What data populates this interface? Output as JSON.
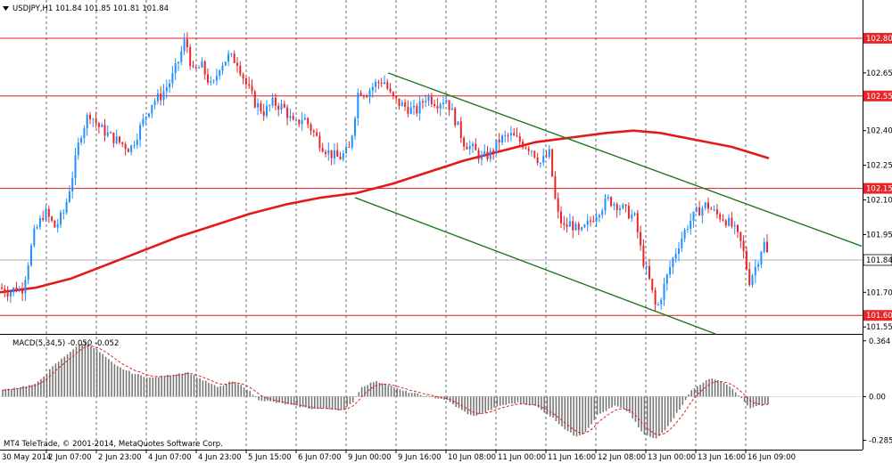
{
  "header": {
    "symbol_line": "USDJPY,H1  101.84 101.85 101.81 101.84",
    "symbol_menu_icon": "triangle-down-icon"
  },
  "footer": {
    "copyright": "MT4 TeleTrade, © 2001-2014, MetaQuotes Software Corp."
  },
  "colors": {
    "background": "#ffffff",
    "bull_candle": "#1e90ff",
    "bear_candle": "#e8262a",
    "moving_average": "#e21a1a",
    "channel": "#1f7a1f",
    "horizontal_level": "#e81818",
    "grid": "#444444",
    "macd_hist": "#777777",
    "macd_signal": "#e22222",
    "price_tag_bg": "#e8262a",
    "current_tag_bg": "#ffffff"
  },
  "chart_data": {
    "type": "candlestick",
    "instrument": "USDJPY",
    "timeframe": "H1",
    "ohlc_header": {
      "open": 101.84,
      "high": 101.85,
      "low": 101.81,
      "close": 101.84
    },
    "current_price": 101.84,
    "y_axis": {
      "ticks": [
        "102.65",
        "102.40",
        "102.25",
        "102.10",
        "101.95",
        "101.70",
        "101.55"
      ],
      "range": [
        101.52,
        102.9
      ]
    },
    "horizontal_levels": [
      {
        "price": 102.8,
        "label": "102.80"
      },
      {
        "price": 102.55,
        "label": "102.55"
      },
      {
        "price": 102.15,
        "label": "102.15"
      },
      {
        "price": 101.6,
        "label": "101.60"
      }
    ],
    "current_price_tag": "101.84",
    "x_axis": {
      "labels": [
        "30 May 2014",
        "2 Jun 07:00",
        "2 Jun 23:00",
        "4 Jun 07:00",
        "4 Jun 23:00",
        "5 Jun 15:00",
        "6 Jun 07:00",
        "9 Jun 00:00",
        "9 Jun 16:00",
        "10 Jun 08:00",
        "11 Jun 00:00",
        "11 Jun 16:00",
        "12 Jun 08:00",
        "13 Jun 00:00",
        "13 Jun 16:00",
        "16 Jun 09:00"
      ],
      "vertical_grid": true
    },
    "candle_path": [
      [
        0,
        101.72
      ],
      [
        10,
        101.7
      ],
      [
        18,
        101.72
      ],
      [
        24,
        101.7
      ],
      [
        30,
        101.8
      ],
      [
        38,
        101.95
      ],
      [
        50,
        102.05
      ],
      [
        62,
        101.98
      ],
      [
        72,
        102.05
      ],
      [
        82,
        102.22
      ],
      [
        90,
        102.38
      ],
      [
        100,
        102.48
      ],
      [
        110,
        102.42
      ],
      [
        122,
        102.38
      ],
      [
        134,
        102.35
      ],
      [
        146,
        102.32
      ],
      [
        158,
        102.42
      ],
      [
        170,
        102.52
      ],
      [
        180,
        102.55
      ],
      [
        192,
        102.62
      ],
      [
        200,
        102.7
      ],
      [
        208,
        102.8
      ],
      [
        216,
        102.65
      ],
      [
        226,
        102.68
      ],
      [
        238,
        102.58
      ],
      [
        246,
        102.68
      ],
      [
        256,
        102.72
      ],
      [
        266,
        102.7
      ],
      [
        276,
        102.6
      ],
      [
        286,
        102.52
      ],
      [
        296,
        102.48
      ],
      [
        306,
        102.52
      ],
      [
        318,
        102.5
      ],
      [
        330,
        102.42
      ],
      [
        340,
        102.46
      ],
      [
        350,
        102.4
      ],
      [
        360,
        102.34
      ],
      [
        370,
        102.3
      ],
      [
        380,
        102.28
      ],
      [
        392,
        102.32
      ],
      [
        402,
        102.58
      ],
      [
        410,
        102.56
      ],
      [
        420,
        102.6
      ],
      [
        430,
        102.62
      ],
      [
        438,
        102.55
      ],
      [
        446,
        102.52
      ],
      [
        456,
        102.5
      ],
      [
        466,
        102.48
      ],
      [
        478,
        102.55
      ],
      [
        490,
        102.52
      ],
      [
        500,
        102.54
      ],
      [
        510,
        102.45
      ],
      [
        520,
        102.35
      ],
      [
        530,
        102.32
      ],
      [
        540,
        102.28
      ],
      [
        550,
        102.3
      ],
      [
        560,
        102.36
      ],
      [
        572,
        102.38
      ],
      [
        584,
        102.35
      ],
      [
        596,
        102.32
      ],
      [
        606,
        102.26
      ],
      [
        616,
        102.3
      ],
      [
        624,
        102.05
      ],
      [
        632,
        101.98
      ],
      [
        640,
        102.0
      ],
      [
        650,
        101.95
      ],
      [
        660,
        102.0
      ],
      [
        672,
        102.06
      ],
      [
        682,
        102.1
      ],
      [
        692,
        102.08
      ],
      [
        702,
        102.05
      ],
      [
        712,
        102.02
      ],
      [
        720,
        101.85
      ],
      [
        728,
        101.75
      ],
      [
        736,
        101.62
      ],
      [
        744,
        101.72
      ],
      [
        752,
        101.82
      ],
      [
        762,
        101.92
      ],
      [
        772,
        102.0
      ],
      [
        782,
        102.05
      ],
      [
        792,
        102.08
      ],
      [
        802,
        102.04
      ],
      [
        812,
        102.02
      ],
      [
        822,
        101.98
      ],
      [
        832,
        101.9
      ],
      [
        840,
        101.75
      ],
      [
        848,
        101.82
      ],
      [
        856,
        101.92
      ],
      [
        862,
        101.84
      ]
    ],
    "moving_average": [
      [
        0,
        101.7
      ],
      [
        40,
        101.72
      ],
      [
        80,
        101.76
      ],
      [
        120,
        101.82
      ],
      [
        160,
        101.88
      ],
      [
        200,
        101.94
      ],
      [
        240,
        101.99
      ],
      [
        280,
        102.04
      ],
      [
        320,
        102.08
      ],
      [
        360,
        102.11
      ],
      [
        400,
        102.13
      ],
      [
        440,
        102.17
      ],
      [
        480,
        102.22
      ],
      [
        520,
        102.27
      ],
      [
        560,
        102.31
      ],
      [
        600,
        102.35
      ],
      [
        640,
        102.37
      ],
      [
        680,
        102.39
      ],
      [
        710,
        102.4
      ],
      [
        740,
        102.39
      ],
      [
        780,
        102.36
      ],
      [
        820,
        102.33
      ],
      [
        862,
        102.28
      ]
    ],
    "channel_lines": [
      {
        "name": "upper",
        "points": [
          [
            435,
            102.65
          ],
          [
            966,
            101.9
          ]
        ]
      },
      {
        "name": "lower",
        "points": [
          [
            398,
            102.11
          ],
          [
            802,
            101.52
          ]
        ]
      }
    ],
    "macd": {
      "label": "MACD(5,34,5) -0.050 -0.052",
      "params": [
        5,
        34,
        5
      ],
      "value": -0.05,
      "signal": -0.052,
      "y_ticks": [
        "0.364",
        "0.00",
        "-0.285"
      ],
      "range": [
        -0.3,
        0.38
      ],
      "histogram_path": [
        [
          0,
          0.04
        ],
        [
          20,
          0.06
        ],
        [
          40,
          0.08
        ],
        [
          60,
          0.2
        ],
        [
          80,
          0.3
        ],
        [
          95,
          0.36
        ],
        [
          110,
          0.3
        ],
        [
          130,
          0.2
        ],
        [
          150,
          0.15
        ],
        [
          170,
          0.12
        ],
        [
          190,
          0.14
        ],
        [
          210,
          0.16
        ],
        [
          230,
          0.1
        ],
        [
          245,
          0.06
        ],
        [
          260,
          0.1
        ],
        [
          275,
          0.06
        ],
        [
          290,
          -0.02
        ],
        [
          310,
          -0.04
        ],
        [
          330,
          -0.06
        ],
        [
          350,
          -0.08
        ],
        [
          370,
          -0.08
        ],
        [
          385,
          -0.09
        ],
        [
          395,
          -0.04
        ],
        [
          405,
          0.06
        ],
        [
          420,
          0.1
        ],
        [
          435,
          0.08
        ],
        [
          450,
          0.04
        ],
        [
          465,
          0.02
        ],
        [
          480,
          0.0
        ],
        [
          500,
          -0.02
        ],
        [
          515,
          -0.08
        ],
        [
          530,
          -0.13
        ],
        [
          545,
          -0.1
        ],
        [
          560,
          -0.06
        ],
        [
          580,
          -0.04
        ],
        [
          600,
          -0.06
        ],
        [
          620,
          -0.14
        ],
        [
          635,
          -0.22
        ],
        [
          645,
          -0.26
        ],
        [
          655,
          -0.24
        ],
        [
          670,
          -0.12
        ],
        [
          690,
          -0.06
        ],
        [
          705,
          -0.1
        ],
        [
          720,
          -0.24
        ],
        [
          735,
          -0.28
        ],
        [
          745,
          -0.22
        ],
        [
          760,
          -0.1
        ],
        [
          775,
          0.04
        ],
        [
          790,
          0.1
        ],
        [
          800,
          0.12
        ],
        [
          815,
          0.08
        ],
        [
          830,
          0.0
        ],
        [
          840,
          -0.08
        ],
        [
          850,
          -0.06
        ],
        [
          862,
          -0.05
        ]
      ]
    }
  }
}
